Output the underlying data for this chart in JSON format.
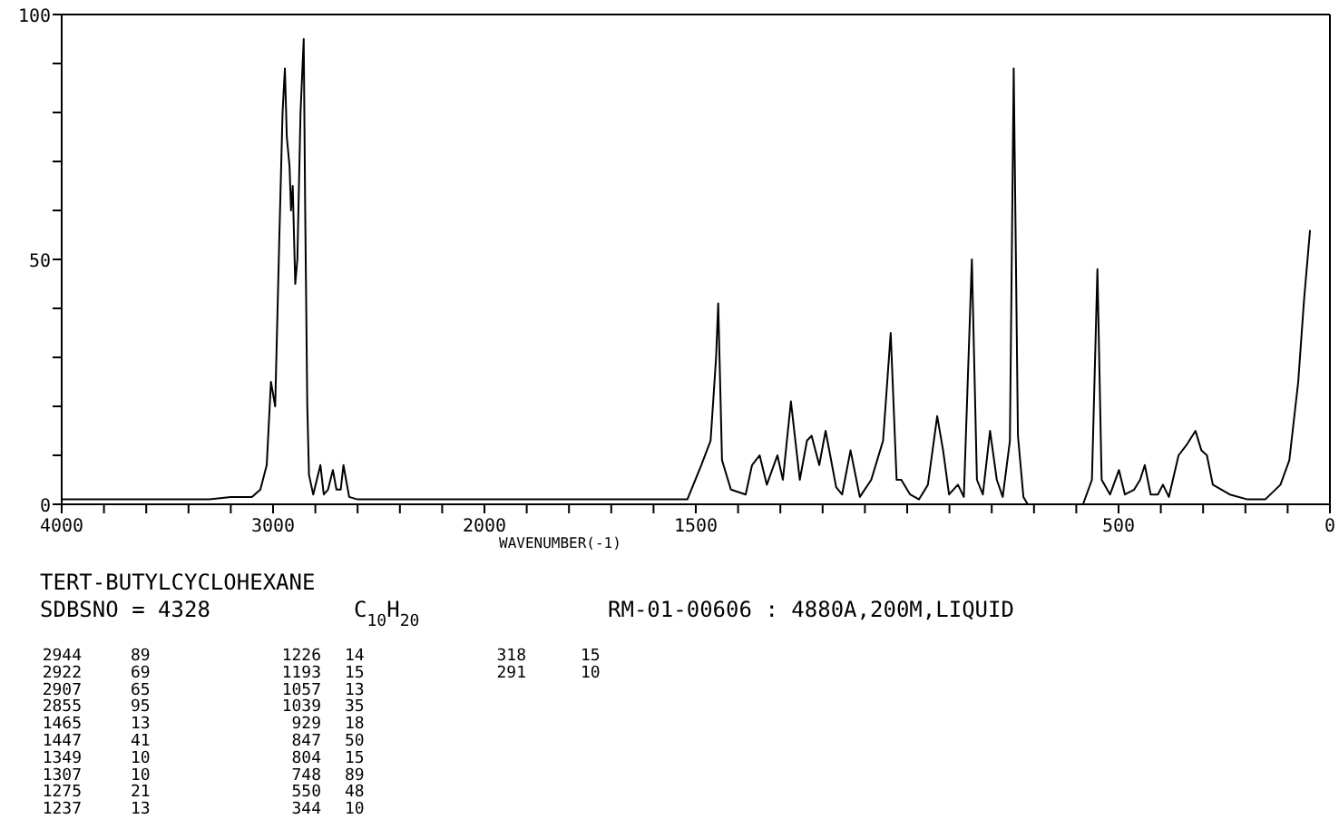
{
  "chart_data": [
    {
      "type": "line",
      "title": "TERT-BUTYLCYCLOHEXANE",
      "xlim": [
        4000,
        2000
      ],
      "xticks": [
        4000,
        {
          "value": 3800,
          "label": null
        },
        {
          "value": 3600,
          "label": null
        },
        {
          "value": 3400,
          "label": null
        },
        {
          "value": 3200,
          "label": null
        },
        3000,
        {
          "value": 2800,
          "label": null
        },
        {
          "value": 2600,
          "label": null
        },
        {
          "value": 2400,
          "label": null
        },
        {
          "value": 2200,
          "label": null
        },
        2000
      ],
      "ylim": [
        0,
        100
      ],
      "yticks": [
        0,
        {
          "value": 10,
          "label": null
        },
        {
          "value": 20,
          "label": null
        },
        {
          "value": 30,
          "label": null
        },
        {
          "value": 40,
          "label": null
        },
        50,
        {
          "value": 60,
          "label": null
        },
        {
          "value": 70,
          "label": null
        },
        {
          "value": 80,
          "label": null
        },
        {
          "value": 90,
          "label": null
        },
        100
      ],
      "series": [
        {
          "color": "#000000",
          "x": [
            4000,
            3300,
            3200,
            3100,
            3060,
            3030,
            3010,
            2990,
            2970,
            2955,
            2944,
            2935,
            2922,
            2915,
            2907,
            2895,
            2885,
            2870,
            2855,
            2848,
            2838,
            2830,
            2810,
            2776,
            2760,
            2740,
            2717,
            2700,
            2680,
            2667,
            2640,
            2600,
            2400,
            2000
          ],
          "values": [
            1,
            1,
            1.5,
            1.5,
            3,
            8,
            25,
            20,
            55,
            80,
            89,
            75,
            69,
            60,
            65,
            45,
            50,
            80,
            95,
            60,
            20,
            6,
            2,
            8,
            2,
            3,
            7,
            3,
            3,
            8,
            1.5,
            1,
            1,
            1
          ]
        }
      ],
      "annotations": [
        "SDBSNO = 4328",
        "C$_{10}$H$_{20}$",
        "RM-01-00606 : 4880A,200M,LIQUID",
        "2944 89",
        "2922 69",
        "2907 65",
        "2855 95",
        "1465 13",
        "1447 41",
        "1349 10",
        "1307 10",
        "1275 21",
        "1237 13",
        "1226 14",
        "1193 15",
        "1057 13",
        "1039 35",
        "929 18",
        "847 50",
        "804 15",
        "748 89",
        "550 48",
        "344 10",
        "318 15",
        "291 10"
      ]
    },
    {
      "type": "line",
      "xlabel": "WAVENUMBER(-1)",
      "tick_labels": "x",
      "xlim": [
        2000,
        0
      ],
      "xticks": [
        {
          "value": 1900,
          "label": null
        },
        {
          "value": 1800,
          "label": null
        },
        {
          "value": 1700,
          "label": null
        },
        {
          "value": 1600,
          "label": null
        },
        1500,
        {
          "value": 1400,
          "label": null
        },
        {
          "value": 1300,
          "label": null
        },
        {
          "value": 1200,
          "label": null
        },
        {
          "value": 1100,
          "label": null
        },
        {
          "value": 1000,
          "label": null
        },
        {
          "value": 900,
          "label": null
        },
        {
          "value": 800,
          "label": null
        },
        {
          "value": 700,
          "label": null
        },
        {
          "value": 600,
          "label": null
        },
        500,
        {
          "value": 400,
          "label": null
        },
        {
          "value": 300,
          "label": null
        },
        {
          "value": 200,
          "label": null
        },
        {
          "value": 100,
          "label": null
        },
        0
      ],
      "ylim": [
        0,
        100
      ],
      "series": [
        {
          "color": "#000000",
          "x": [
            2000,
            1700,
            1600,
            1520,
            1487,
            1465,
            1452,
            1447,
            1438,
            1417,
            1382,
            1367,
            1349,
            1332,
            1307,
            1294,
            1275,
            1254,
            1237,
            1226,
            1208,
            1193,
            1168,
            1154,
            1134,
            1112,
            1085,
            1064,
            1057,
            1039,
            1025,
            1014,
            993,
            972,
            951,
            929,
            915,
            901,
            880,
            866,
            847,
            835,
            821,
            804,
            788,
            774,
            757,
            748,
            738,
            725,
            715,
            584,
            563,
            550,
            540,
            520,
            499,
            485,
            463,
            449,
            438,
            424,
            407,
            395,
            381,
            358,
            340,
            318,
            304,
            291,
            277,
            237,
            195,
            153,
            117,
            96,
            75,
            61,
            47
          ],
          "values": [
            1,
            1,
            1,
            1,
            8,
            13,
            30,
            41,
            9,
            3,
            2,
            8,
            10,
            4,
            10,
            5,
            21,
            5,
            13,
            14,
            8,
            15,
            3.5,
            2,
            11,
            1.5,
            5,
            11,
            13,
            35,
            5,
            5,
            2,
            1,
            4,
            18,
            11,
            2,
            4,
            1.5,
            50,
            5,
            2,
            15,
            5,
            1.5,
            13,
            89,
            14,
            1.5,
            0,
            0,
            5,
            48,
            5,
            2,
            7,
            2,
            3,
            5,
            8,
            2,
            2,
            4,
            1.5,
            10,
            12,
            15,
            11,
            10,
            4,
            2,
            1,
            1,
            4,
            9,
            25,
            42,
            56
          ]
        }
      ]
    }
  ]
}
